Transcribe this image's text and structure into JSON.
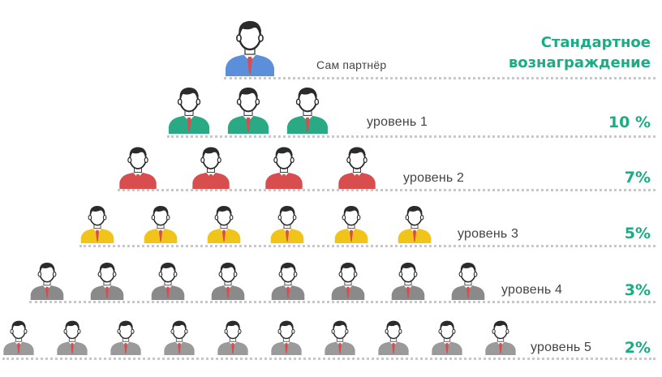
{
  "header": {
    "line1": "Стандартное",
    "line2": "вознаграждение"
  },
  "colors": {
    "accent": "#1aac84",
    "partner": "#5b8fd9",
    "level1": "#2aaa84",
    "level2": "#d84d4d",
    "level3": "#f0c419",
    "level4": "#8a8a8a",
    "level5": "#9a9a9a",
    "tie": "#d84d4d",
    "hair": "#2b2b2b",
    "skin": "#ffffff"
  },
  "levels": [
    {
      "label": "Сам партнёр",
      "reward": "",
      "count": 1
    },
    {
      "label": "уровень 1",
      "reward": "10 %",
      "count": 3
    },
    {
      "label": "уровень 2",
      "reward": "7%",
      "count": 4
    },
    {
      "label": "уровень 3",
      "reward": "5%",
      "count": 6
    },
    {
      "label": "уровень 4",
      "reward": "3%",
      "count": 8
    },
    {
      "label": "уровень 5",
      "reward": "2%",
      "count": 10
    }
  ]
}
